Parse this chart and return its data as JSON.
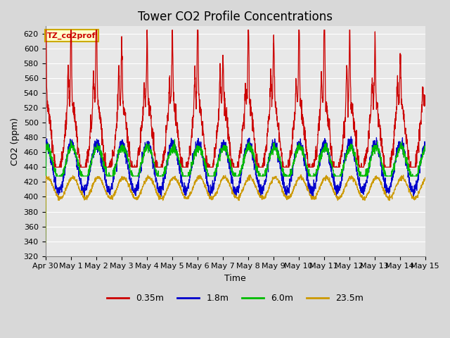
{
  "title": "Tower CO2 Profile Concentrations",
  "xlabel": "Time",
  "ylabel": "CO2 (ppm)",
  "ylim": [
    320,
    630
  ],
  "yticks": [
    320,
    340,
    360,
    380,
    400,
    420,
    440,
    460,
    480,
    500,
    520,
    540,
    560,
    580,
    600,
    620
  ],
  "series": [
    "0.35m",
    "1.8m",
    "6.0m",
    "23.5m"
  ],
  "colors": [
    "#cc0000",
    "#0000cc",
    "#00bb00",
    "#cc9900"
  ],
  "legend_label": "TZ_co2prof",
  "legend_label_bg": "#ffffcc",
  "legend_label_border": "#ccaa00",
  "background_color": "#d8d8d8",
  "plot_bg": "#e8e8e8",
  "grid_color": "#ffffff",
  "n_days": 15,
  "x_tick_labels": [
    "Apr 30",
    "May 1",
    "May 2",
    "May 3",
    "May 4",
    "May 5",
    "May 6",
    "May 7",
    "May 8",
    "May 9",
    "May 10",
    "May 11",
    "May 12",
    "May 13",
    "May 14",
    "May 15"
  ],
  "title_fontsize": 12,
  "axis_label_fontsize": 9,
  "tick_fontsize": 8
}
